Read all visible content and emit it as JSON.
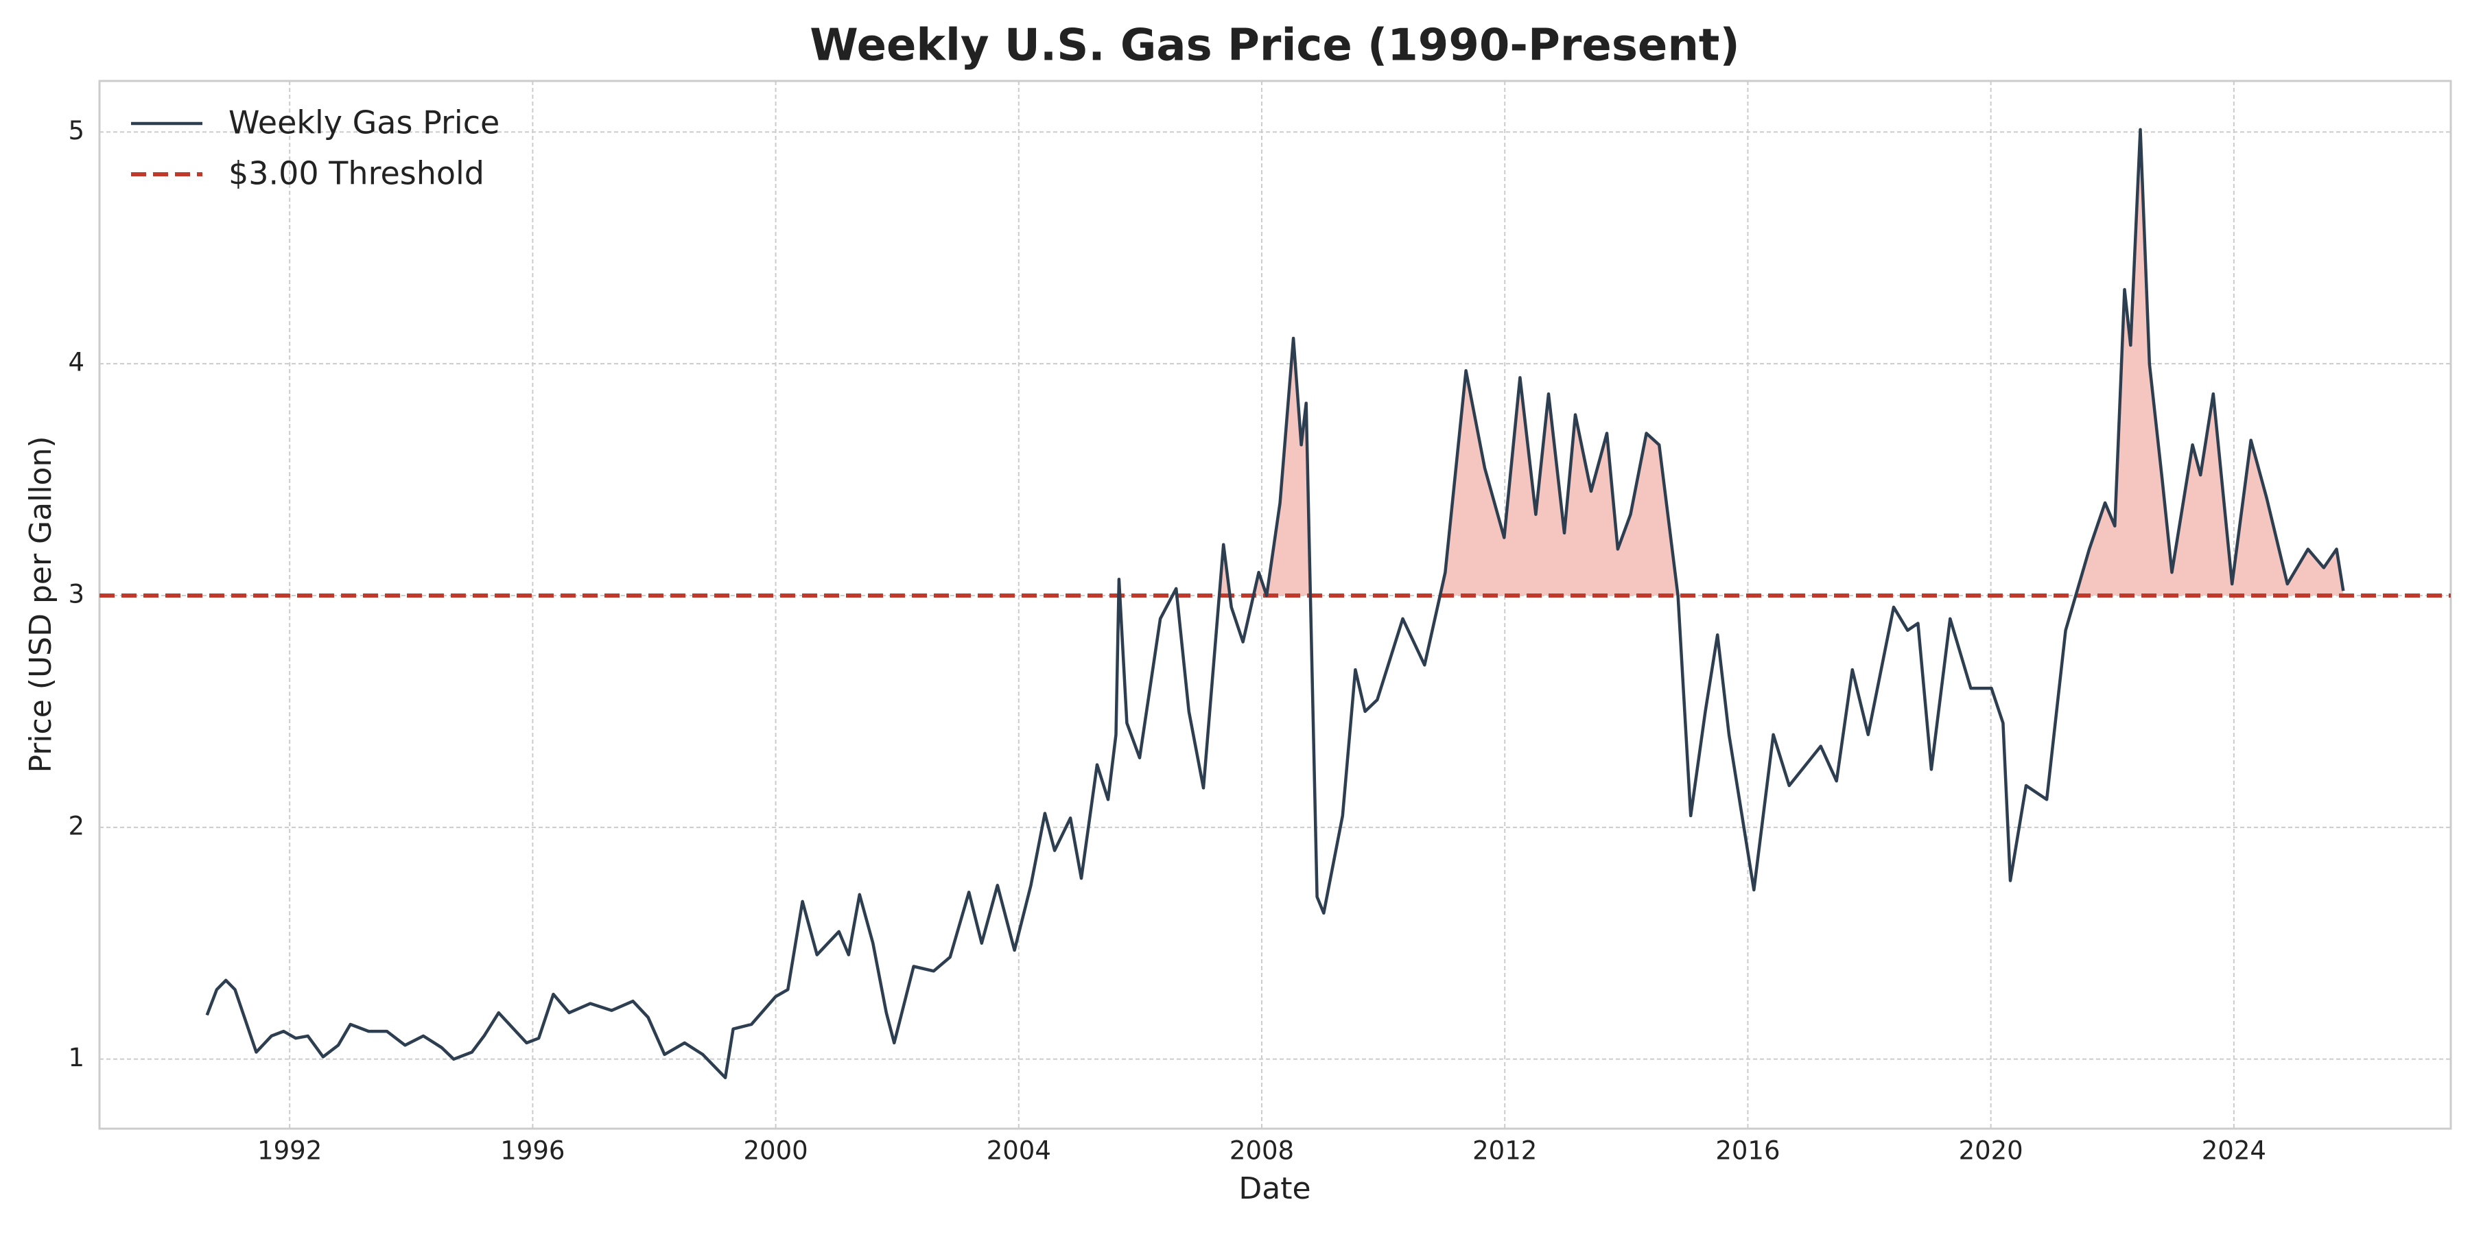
{
  "chart_data": {
    "type": "line",
    "title": "Weekly U.S. Gas Price (1990-Present)",
    "x_label": "Date",
    "y_label": "Price (USD per Gallon)",
    "x": [
      1990.64,
      1990.8,
      1990.95,
      1991.1,
      1991.45,
      1991.7,
      1991.9,
      1992.1,
      1992.3,
      1992.55,
      1992.8,
      1993.0,
      1993.3,
      1993.6,
      1993.9,
      1994.2,
      1994.5,
      1994.7,
      1995.0,
      1995.2,
      1995.44,
      1995.9,
      1996.1,
      1996.34,
      1996.6,
      1996.95,
      1997.3,
      1997.65,
      1997.9,
      1998.17,
      1998.5,
      1998.8,
      1999.17,
      1999.3,
      1999.6,
      2000.0,
      2000.2,
      2000.44,
      2000.68,
      2001.04,
      2001.2,
      2001.38,
      2001.6,
      2001.82,
      2001.95,
      2002.27,
      2002.6,
      2002.87,
      2003.18,
      2003.39,
      2003.65,
      2003.93,
      2004.2,
      2004.43,
      2004.59,
      2004.85,
      2005.03,
      2005.29,
      2005.47,
      2005.6,
      2005.65,
      2005.78,
      2005.99,
      2006.33,
      2006.59,
      2006.8,
      2007.04,
      2007.37,
      2007.5,
      2007.69,
      2007.95,
      2008.08,
      2008.3,
      2008.52,
      2008.65,
      2008.73,
      2008.91,
      2009.02,
      2009.33,
      2009.54,
      2009.7,
      2009.9,
      2010.32,
      2010.68,
      2011.02,
      2011.36,
      2011.67,
      2011.99,
      2012.25,
      2012.51,
      2012.72,
      2012.98,
      2013.16,
      2013.42,
      2013.68,
      2013.86,
      2014.07,
      2014.33,
      2014.54,
      2014.85,
      2015.06,
      2015.3,
      2015.5,
      2015.69,
      2016.1,
      2016.42,
      2016.68,
      2017.2,
      2017.46,
      2017.72,
      2017.98,
      2018.4,
      2018.63,
      2018.8,
      2019.02,
      2019.33,
      2019.67,
      2020.01,
      2020.2,
      2020.32,
      2020.58,
      2020.92,
      2021.23,
      2021.62,
      2021.88,
      2022.04,
      2022.2,
      2022.3,
      2022.46,
      2022.61,
      2022.82,
      2022.98,
      2023.32,
      2023.45,
      2023.66,
      2023.97,
      2024.28,
      2024.54,
      2024.88,
      2025.22,
      2025.48,
      2025.69,
      2025.8
    ],
    "series": [
      {
        "name": "Weekly Gas Price",
        "color": "#2c3e50",
        "values": [
          1.19,
          1.3,
          1.34,
          1.3,
          1.03,
          1.1,
          1.12,
          1.09,
          1.1,
          1.01,
          1.06,
          1.15,
          1.12,
          1.12,
          1.06,
          1.1,
          1.05,
          1.0,
          1.03,
          1.1,
          1.2,
          1.07,
          1.09,
          1.28,
          1.2,
          1.24,
          1.21,
          1.25,
          1.18,
          1.02,
          1.07,
          1.02,
          0.92,
          1.13,
          1.15,
          1.27,
          1.3,
          1.68,
          1.45,
          1.55,
          1.45,
          1.71,
          1.5,
          1.2,
          1.07,
          1.4,
          1.38,
          1.44,
          1.72,
          1.5,
          1.75,
          1.47,
          1.75,
          2.06,
          1.9,
          2.04,
          1.78,
          2.27,
          2.12,
          2.4,
          3.07,
          2.45,
          2.3,
          2.9,
          3.03,
          2.5,
          2.17,
          3.22,
          2.95,
          2.8,
          3.1,
          3.0,
          3.4,
          4.11,
          3.65,
          3.83,
          1.7,
          1.63,
          2.05,
          2.68,
          2.5,
          2.55,
          2.9,
          2.7,
          3.1,
          3.97,
          3.55,
          3.25,
          3.94,
          3.35,
          3.87,
          3.27,
          3.78,
          3.45,
          3.7,
          3.2,
          3.35,
          3.7,
          3.65,
          3.0,
          2.05,
          2.5,
          2.83,
          2.4,
          1.73,
          2.4,
          2.18,
          2.35,
          2.2,
          2.68,
          2.4,
          2.95,
          2.85,
          2.88,
          2.25,
          2.9,
          2.6,
          2.6,
          2.45,
          1.77,
          2.18,
          2.12,
          2.85,
          3.2,
          3.4,
          3.3,
          4.32,
          4.08,
          5.01,
          4.0,
          3.5,
          3.1,
          3.65,
          3.52,
          3.87,
          3.05,
          3.67,
          3.42,
          3.05,
          3.2,
          3.12,
          3.2,
          3.02
        ]
      }
    ],
    "threshold": {
      "name": "$3.00 Threshold",
      "value": 3,
      "color": "#c0392b"
    },
    "fill_color": "#f5c6c0",
    "xlim": [
      1988.87,
      2027.57
    ],
    "ylim": [
      0.7,
      5.22
    ],
    "xticks": [
      1992,
      1996,
      2000,
      2004,
      2008,
      2012,
      2016,
      2020,
      2024
    ],
    "yticks": [
      1,
      2,
      3,
      4,
      5
    ],
    "grid": true,
    "legend": "upper left"
  }
}
